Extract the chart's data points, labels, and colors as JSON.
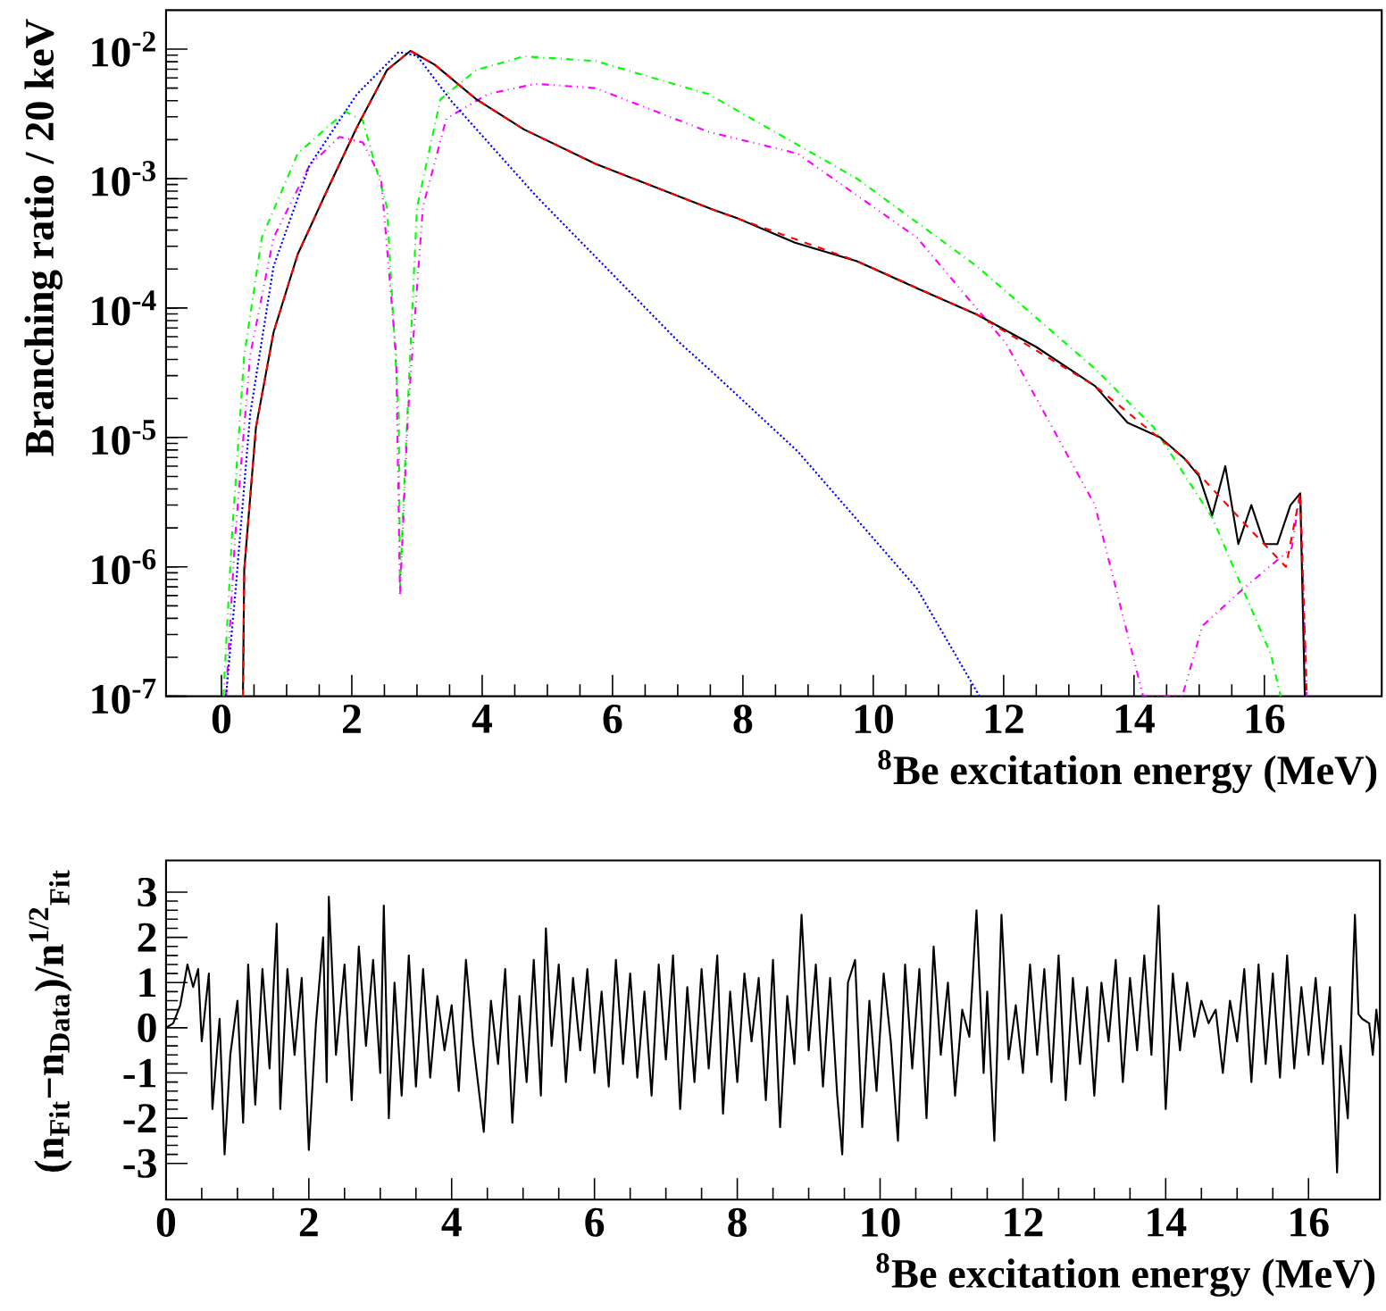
{
  "chart_data": [
    {
      "type": "line",
      "log": "y",
      "xlabel": "$^{8}$Be excitation energy (MeV)",
      "ylabel": "Branching ratio / 20 keV",
      "xlim": [
        -0.85,
        17.8
      ],
      "ylim": [
        1e-07,
        0.02
      ],
      "xticks": [
        0,
        2,
        4,
        6,
        8,
        10,
        12,
        14,
        16
      ],
      "yticks": [
        {
          "value": 1e-07,
          "label": "10$^{-7}$"
        },
        {
          "value": 1e-06,
          "label": "10$^{-6}$"
        },
        {
          "value": 1e-05,
          "label": "10$^{-5}$"
        },
        {
          "value": 0.0001,
          "label": "10$^{-4}$"
        },
        {
          "value": 0.001,
          "label": "10$^{-3}$"
        },
        {
          "value": 0.01,
          "label": "10$^{-2}$"
        }
      ],
      "series": [
        {
          "color": "#00ff00",
          "line_style": "dashdot",
          "x": [
            0.03,
            0.16,
            0.35,
            0.62,
            1.17,
            1.9,
            2.17,
            2.54,
            2.72,
            2.74,
            2.81,
            3.0,
            3.36,
            3.91,
            4.64,
            5.74,
            7.47,
            9.75,
            11.59,
            13.4,
            14.3,
            15.2,
            16.1,
            16.25
          ],
          "values": [
            1e-07,
            1.7e-06,
            4.3e-05,
            0.00035,
            0.00156,
            0.0033,
            0.0028,
            0.0006,
            1.5e-05,
            6.8e-07,
            5.1e-06,
            0.0006,
            0.0041,
            0.0069,
            0.0088,
            0.0081,
            0.0045,
            0.001,
            0.00021,
            3.4e-05,
            1.2e-05,
            2.4e-06,
            2.1e-07,
            1e-07
          ]
        },
        {
          "color": "#ff00ff",
          "line_style": "dashdotdot",
          "x": [
            0.07,
            0.21,
            0.44,
            0.8,
            1.35,
            1.81,
            2.17,
            2.45,
            2.68,
            2.74,
            2.86,
            3.09,
            3.45,
            4.09,
            4.82,
            5.74,
            7.47,
            8.84,
            10.67,
            12.04,
            13.4,
            14.14,
            14.74,
            15.05,
            15.68,
            16.42,
            16.55,
            16.65
          ],
          "values": [
            1e-07,
            1.7e-06,
            4.3e-05,
            0.00035,
            0.00126,
            0.0021,
            0.0019,
            0.001,
            4.3e-05,
            6e-07,
            1.5e-05,
            0.0006,
            0.0029,
            0.0045,
            0.0054,
            0.005,
            0.0023,
            0.00156,
            0.00035,
            5.3e-05,
            3e-06,
            1e-07,
            1e-07,
            3.5e-07,
            6.8e-07,
            1.4e-06,
            3.7e-06,
            1e-07
          ]
        },
        {
          "color": "#0000ff",
          "line_style": "dotted",
          "x": [
            0.07,
            0.21,
            0.44,
            0.8,
            1.35,
            2.08,
            2.72,
            3.0,
            3.54,
            4.82,
            7.01,
            7.56,
            8.84,
            10.67,
            11.63
          ],
          "values": [
            1e-07,
            6e-07,
            1.5e-05,
            0.00021,
            0.00126,
            0.0045,
            0.0095,
            0.0089,
            0.0039,
            0.00074,
            5.5e-05,
            3.1e-05,
            7.8e-06,
            6.8e-07,
            1e-07
          ]
        },
        {
          "color": "#000000",
          "line_style": "solid",
          "x": [
            0.33,
            0.35,
            0.53,
            0.8,
            1.17,
            1.63,
            2.08,
            2.54,
            2.9,
            3.27,
            3.91,
            4.64,
            5.74,
            7.56,
            7.93,
            8.8,
            9.75,
            10.7,
            11.59,
            12.5,
            13.4,
            13.9,
            14.4,
            14.77,
            15.0,
            15.2,
            15.4,
            15.6,
            15.8,
            16.0,
            16.2,
            16.4,
            16.55,
            16.62
          ],
          "values": [
            1e-07,
            9.5e-07,
            1.2e-05,
            6.5e-05,
            0.00026,
            0.00083,
            0.0025,
            0.0069,
            0.0097,
            0.0076,
            0.0041,
            0.0024,
            0.0013,
            0.00057,
            0.00049,
            0.00032,
            0.00023,
            0.00014,
            8.9e-05,
            5e-05,
            2.5e-05,
            1.3e-05,
            1e-05,
            6.9e-06,
            5e-06,
            2.5e-06,
            6e-06,
            1.5e-06,
            3e-06,
            1.5e-06,
            1.5e-06,
            3e-06,
            3.7e-06,
            1e-07
          ]
        },
        {
          "color": "#ff0000",
          "line_style": "dashed",
          "x": [
            0.33,
            0.35,
            0.53,
            0.8,
            1.17,
            1.63,
            2.08,
            2.54,
            2.9,
            3.27,
            3.91,
            4.64,
            5.74,
            7.56,
            9.75,
            11.59,
            13.4,
            14.77,
            15.68,
            16.33,
            16.55,
            16.65
          ],
          "values": [
            1e-07,
            9.5e-07,
            1.2e-05,
            6.5e-05,
            0.00026,
            0.00083,
            0.0025,
            0.0069,
            0.0097,
            0.0076,
            0.0041,
            0.0024,
            0.0013,
            0.00057,
            0.00023,
            8.9e-05,
            2.5e-05,
            6.9e-06,
            2.2e-06,
            1e-06,
            3.7e-06,
            1e-07
          ]
        }
      ]
    },
    {
      "type": "line",
      "xlabel": "$^{8}$Be excitation energy (MeV)",
      "ylabel": "(n$_{Fit}$−n$_{Data}$)/n$^{1/2}$$_{Fit}$",
      "xlim": [
        0,
        17
      ],
      "ylim": [
        -3.8,
        3.7
      ],
      "xticks": [
        0,
        2,
        4,
        6,
        8,
        10,
        12,
        14,
        16
      ],
      "yticks": [
        -3,
        -2,
        -1,
        0,
        1,
        2,
        3
      ],
      "series": [
        {
          "color": "#000000",
          "line_style": "solid",
          "x": [
            0,
            0.1,
            0.2,
            0.3,
            0.38,
            0.45,
            0.5,
            0.6,
            0.65,
            0.75,
            0.82,
            0.9,
            1.0,
            1.08,
            1.15,
            1.25,
            1.35,
            1.45,
            1.55,
            1.6,
            1.7,
            1.8,
            1.9,
            2.0,
            2.1,
            2.2,
            2.25,
            2.28,
            2.38,
            2.5,
            2.6,
            2.7,
            2.8,
            2.9,
            3.0,
            3.05,
            3.12,
            3.2,
            3.3,
            3.4,
            3.5,
            3.6,
            3.7,
            3.8,
            3.9,
            4.0,
            4.1,
            4.2,
            4.3,
            4.45,
            4.55,
            4.65,
            4.75,
            4.85,
            4.95,
            5.05,
            5.15,
            5.25,
            5.32,
            5.4,
            5.5,
            5.6,
            5.7,
            5.8,
            5.9,
            6.0,
            6.1,
            6.2,
            6.3,
            6.4,
            6.5,
            6.6,
            6.7,
            6.8,
            6.9,
            7.0,
            7.1,
            7.2,
            7.3,
            7.4,
            7.5,
            7.6,
            7.72,
            7.8,
            7.9,
            8.0,
            8.1,
            8.2,
            8.3,
            8.4,
            8.5,
            8.6,
            8.7,
            8.8,
            8.9,
            9.0,
            9.1,
            9.2,
            9.3,
            9.4,
            9.47,
            9.55,
            9.65,
            9.75,
            9.85,
            9.95,
            10.05,
            10.15,
            10.25,
            10.35,
            10.45,
            10.55,
            10.65,
            10.75,
            10.85,
            10.95,
            11.05,
            11.15,
            11.25,
            11.35,
            11.45,
            11.5,
            11.6,
            11.7,
            11.8,
            11.9,
            12.0,
            12.1,
            12.2,
            12.3,
            12.4,
            12.5,
            12.6,
            12.7,
            12.8,
            12.9,
            13.0,
            13.1,
            13.2,
            13.3,
            13.4,
            13.5,
            13.6,
            13.7,
            13.8,
            13.9,
            14.0,
            14.1,
            14.2,
            14.3,
            14.4,
            14.5,
            14.6,
            14.7,
            14.8,
            14.9,
            15.0,
            15.1,
            15.2,
            15.3,
            15.4,
            15.5,
            15.6,
            15.7,
            15.8,
            15.9,
            16.0,
            16.1,
            16.2,
            16.3,
            16.4,
            16.45,
            16.55,
            16.65,
            16.7,
            16.75,
            16.85,
            16.9,
            16.95,
            17.0
          ],
          "values": [
            0,
            0.1,
            0.5,
            1.4,
            0.9,
            1.3,
            -0.3,
            1.2,
            -1.8,
            0.2,
            -2.8,
            -0.6,
            0.6,
            -2.1,
            1.4,
            -1.7,
            1.3,
            -0.9,
            2.3,
            -1.8,
            1.3,
            -0.6,
            1.1,
            -2.7,
            0.1,
            2.0,
            -1.2,
            2.9,
            -0.6,
            1.4,
            -1.6,
            1.8,
            -0.4,
            1.5,
            -1.0,
            2.7,
            -2.0,
            1.0,
            -1.5,
            1.6,
            -1.3,
            1.3,
            -1.1,
            0.7,
            -0.5,
            0.5,
            -1.4,
            1.5,
            -0.3,
            -2.3,
            0.6,
            -0.8,
            1.3,
            -2.1,
            0.7,
            -1.2,
            1.5,
            -1.5,
            2.2,
            -0.4,
            1.4,
            -1.2,
            1.1,
            -0.5,
            1.3,
            -1.0,
            0.8,
            -1.3,
            1.5,
            -0.8,
            1.2,
            -1.1,
            0.8,
            -1.5,
            1.4,
            -0.7,
            1.6,
            -1.8,
            0.9,
            -1.2,
            1.3,
            -0.9,
            1.6,
            -1.9,
            0.8,
            -1.2,
            1.2,
            -0.3,
            1.1,
            -1.6,
            1.5,
            -2.2,
            0.7,
            -0.8,
            2.5,
            -0.5,
            1.4,
            -1.3,
            1.1,
            -1.5,
            -2.8,
            1.0,
            1.5,
            -2.2,
            0.6,
            -1.4,
            1.2,
            -0.3,
            -2.5,
            1.4,
            -0.9,
            1.3,
            -2.0,
            1.8,
            -0.6,
            1.0,
            -1.5,
            0.4,
            -0.2,
            2.6,
            -1.0,
            0.8,
            -2.5,
            2.5,
            -0.7,
            0.5,
            -1.0,
            1.4,
            -0.6,
            1.3,
            -1.2,
            1.6,
            -1.6,
            1.1,
            -0.8,
            0.9,
            -1.5,
            1.0,
            -0.3,
            1.5,
            -1.2,
            1.1,
            -0.5,
            1.6,
            -0.6,
            2.7,
            -1.8,
            1.2,
            -0.5,
            1.0,
            -0.2,
            0.6,
            0.1,
            0.4,
            -1.0,
            0.6,
            -0.3,
            1.3,
            -1.2,
            1.4,
            -0.8,
            1.2,
            -1.1,
            1.6,
            -0.9,
            0.9,
            -0.6,
            1.1,
            -0.8,
            0.9,
            -3.2,
            -0.4,
            -2.0,
            2.5,
            0.3,
            0.2,
            0.1,
            -0.6,
            0.4,
            -0.3
          ]
        }
      ]
    }
  ]
}
